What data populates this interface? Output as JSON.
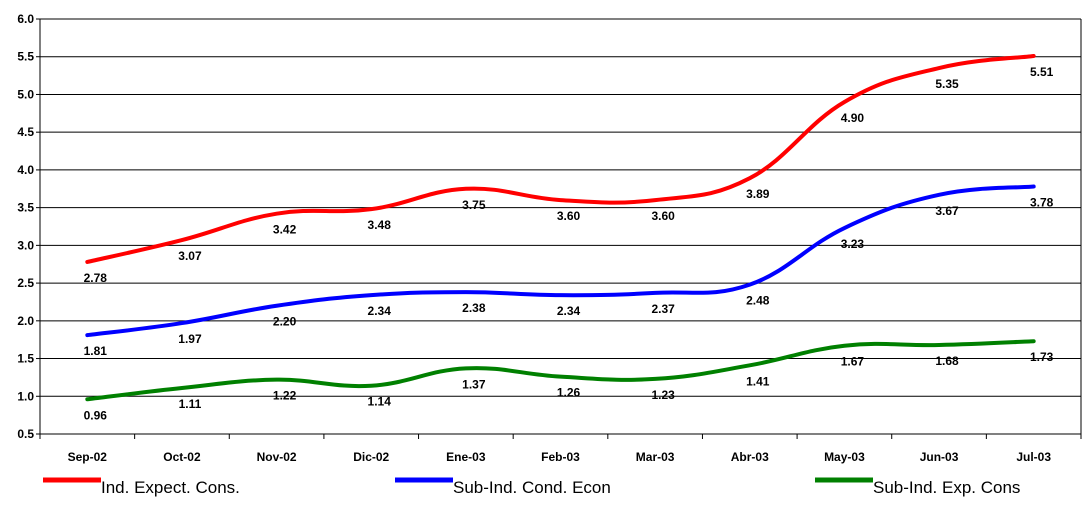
{
  "chart_data": {
    "type": "line",
    "title": "",
    "xlabel": "",
    "ylabel": "",
    "ylim": [
      0.5,
      6.0
    ],
    "yticks": [
      "0.5",
      "1.0",
      "1.5",
      "2.0",
      "2.5",
      "3.0",
      "3.5",
      "4.0",
      "4.5",
      "5.0",
      "5.5",
      "6.0"
    ],
    "grid": "horizontal",
    "legend_position": "bottom",
    "categories": [
      "Sep-02",
      "Oct-02",
      "Nov-02",
      "Dic-02",
      "Ene-03",
      "Feb-03",
      "Mar-03",
      "Abr-03",
      "May-03",
      "Jun-03",
      "Jul-03"
    ],
    "series": [
      {
        "name": "Ind. Expect. Cons.",
        "color": "#ff0000",
        "values": [
          2.78,
          3.07,
          3.42,
          3.48,
          3.75,
          3.6,
          3.6,
          3.89,
          4.9,
          5.35,
          5.51
        ],
        "labels": [
          "2.78",
          "3.07",
          "3.42",
          "3.48",
          "3.75",
          "3.60",
          "3.60",
          "3.89",
          "4.90",
          "5.35",
          "5.51"
        ]
      },
      {
        "name": "Sub-Ind. Cond. Econ",
        "color": "#0000ff",
        "values": [
          1.81,
          1.97,
          2.2,
          2.34,
          2.38,
          2.34,
          2.37,
          2.48,
          3.23,
          3.67,
          3.78
        ],
        "labels": [
          "1.81",
          "1.97",
          "2.20",
          "2.34",
          "2.38",
          "2.34",
          "2.37",
          "2.48",
          "3.23",
          "3.67",
          "3.78"
        ]
      },
      {
        "name": "Sub-Ind. Exp. Cons",
        "color": "#008000",
        "values": [
          0.96,
          1.11,
          1.22,
          1.14,
          1.37,
          1.26,
          1.23,
          1.41,
          1.67,
          1.68,
          1.73
        ],
        "labels": [
          "0.96",
          "1.11",
          "1.22",
          "1.14",
          "1.37",
          "1.26",
          "1.23",
          "1.41",
          "1.67",
          "1.68",
          "1.73"
        ]
      }
    ]
  }
}
